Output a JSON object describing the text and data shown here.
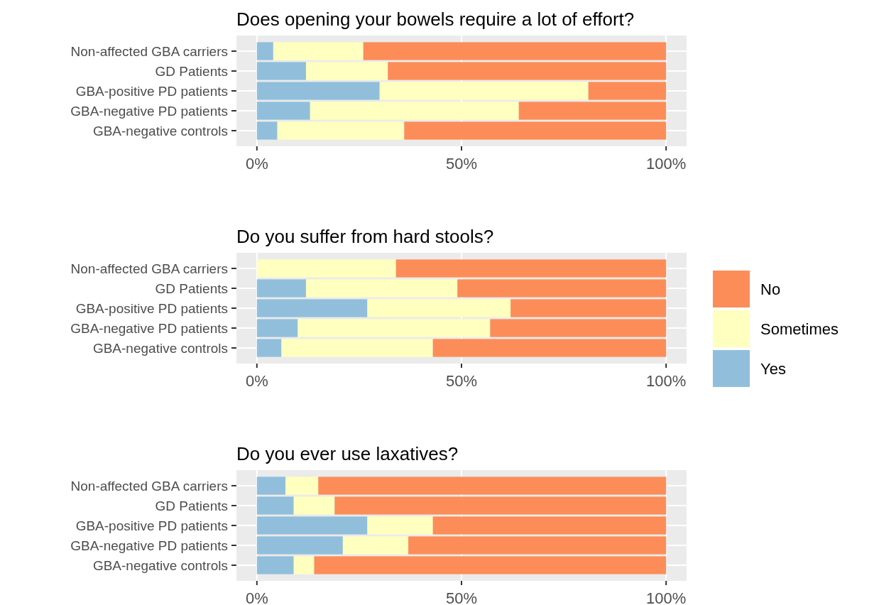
{
  "chart_data": [
    {
      "type": "bar",
      "title": "Does opening your bowels require a lot of effort?",
      "orientation": "horizontal",
      "stacked": true,
      "categories": [
        "Non-affected GBA carriers",
        "GD Patients",
        "GBA-positive PD patients",
        "GBA-negative PD patients",
        "GBA-negative controls"
      ],
      "series": [
        {
          "color": "#91bfdb",
          "values": [
            4,
            12,
            30,
            13,
            5
          ]
        },
        {
          "color": "#ffffbf",
          "values": [
            22,
            20,
            51,
            51,
            31
          ]
        },
        {
          "color": "#fc8d59",
          "values": [
            74,
            68,
            19,
            36,
            64
          ]
        }
      ],
      "xlim": [
        -5,
        105
      ],
      "xticks": [
        {
          "value": 0,
          "label": "0%"
        },
        {
          "value": 50,
          "label": "50%"
        },
        {
          "value": 100,
          "label": "100%"
        }
      ],
      "grid": true,
      "legend": false
    },
    {
      "type": "bar",
      "title": "Do you suffer from hard stools?",
      "orientation": "horizontal",
      "stacked": true,
      "categories": [
        "Non-affected GBA carriers",
        "GD Patients",
        "GBA-positive PD patients",
        "GBA-negative PD patients",
        "GBA-negative controls"
      ],
      "series": [
        {
          "name": "Yes",
          "color": "#91bfdb",
          "values": [
            0,
            12,
            27,
            10,
            6
          ]
        },
        {
          "name": "Sometimes",
          "color": "#ffffbf",
          "values": [
            34,
            37,
            35,
            47,
            37
          ]
        },
        {
          "name": "No",
          "color": "#fc8d59",
          "values": [
            66,
            51,
            38,
            43,
            57
          ]
        }
      ],
      "xlim": [
        -5,
        105
      ],
      "xticks": [
        {
          "value": 0,
          "label": "0%"
        },
        {
          "value": 50,
          "label": "50%"
        },
        {
          "value": 100,
          "label": "100%"
        }
      ],
      "grid": true,
      "legend": "right"
    },
    {
      "type": "bar",
      "title": "Do you ever use laxatives?",
      "orientation": "horizontal",
      "stacked": true,
      "categories": [
        "Non-affected GBA carriers",
        "GD Patients",
        "GBA-positive PD patients",
        "GBA-negative PD patients",
        "GBA-negative controls"
      ],
      "series": [
        {
          "color": "#91bfdb",
          "values": [
            7,
            9,
            27,
            21,
            9
          ]
        },
        {
          "color": "#ffffbf",
          "values": [
            8,
            10,
            16,
            16,
            5
          ]
        },
        {
          "color": "#fc8d59",
          "values": [
            85,
            81,
            57,
            63,
            86
          ]
        }
      ],
      "xlim": [
        -5,
        105
      ],
      "xticks": [
        {
          "value": 0,
          "label": "0%"
        },
        {
          "value": 50,
          "label": "50%"
        },
        {
          "value": 100,
          "label": "100%"
        }
      ],
      "grid": true,
      "legend": false
    }
  ]
}
